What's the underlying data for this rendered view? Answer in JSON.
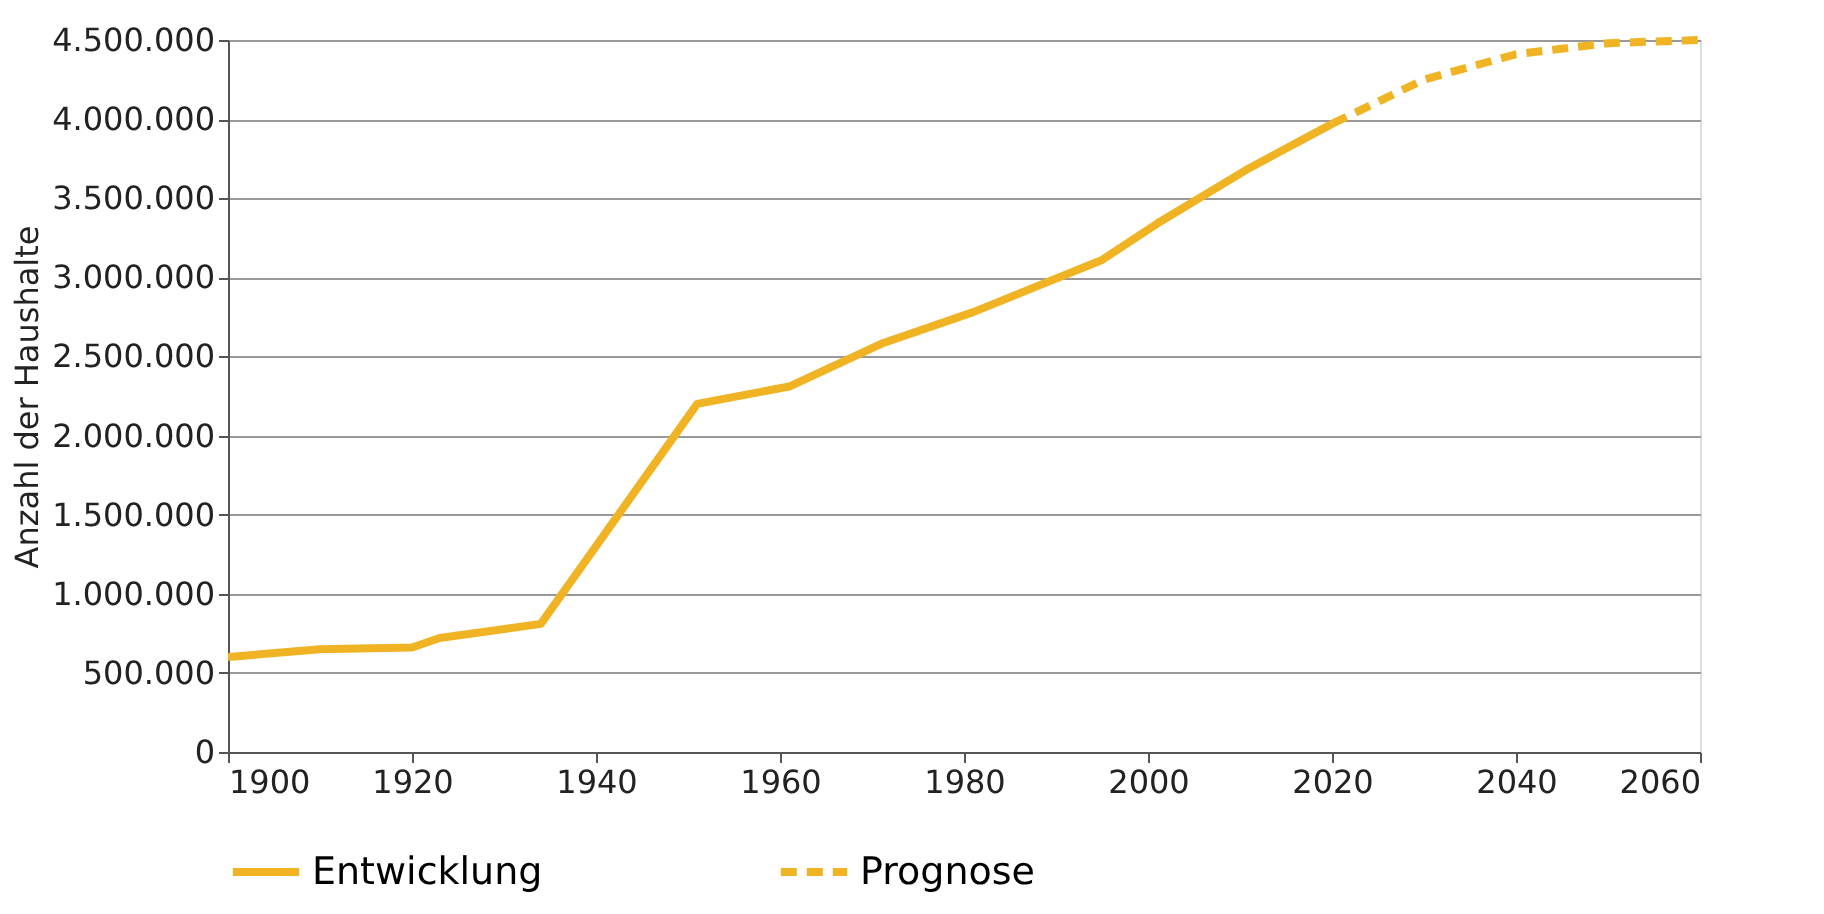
{
  "chart_data": {
    "type": "line",
    "ylabel": "Anzahl der Haushalte",
    "xlim": [
      1900,
      2060
    ],
    "xticks": [
      1900,
      1920,
      1940,
      1960,
      1980,
      2000,
      2020,
      2040,
      2060
    ],
    "ylim": [
      0,
      4500000
    ],
    "yticks": [
      0,
      {
        "value": 500000,
        "label": "500.000"
      },
      {
        "value": 1000000,
        "label": "1.000.000"
      },
      {
        "value": 1500000,
        "label": "1.500.000"
      },
      {
        "value": 2000000,
        "label": "2.000.000"
      },
      {
        "value": 2500000,
        "label": "2.500.000"
      },
      {
        "value": 3000000,
        "label": "3.000.000"
      },
      {
        "value": 3500000,
        "label": "3.500.000"
      },
      {
        "value": 4000000,
        "label": "4.000.000"
      },
      {
        "value": 4500000,
        "label": "4.500.000"
      }
    ],
    "grid": "y",
    "legend": "bottom",
    "marker": "none",
    "series": [
      {
        "name": "Entwicklung",
        "color": "#f0b323",
        "line_style": "solid",
        "x": [
          1900,
          1910,
          1920,
          1923,
          1934,
          1951,
          1961,
          1971,
          1981,
          1995,
          2001,
          2011,
          2020
        ],
        "values": [
          600000,
          650000,
          660000,
          720000,
          810000,
          2200000,
          2310000,
          2580000,
          2780000,
          3110000,
          3340000,
          3690000,
          3970000
        ]
      },
      {
        "name": "Prognose",
        "color": "#f0b323",
        "line_style": "dashed",
        "x": [
          2020,
          2030,
          2040,
          2050,
          2060
        ],
        "values": [
          3970000,
          4250000,
          4410000,
          4480000,
          4500000
        ]
      }
    ]
  }
}
